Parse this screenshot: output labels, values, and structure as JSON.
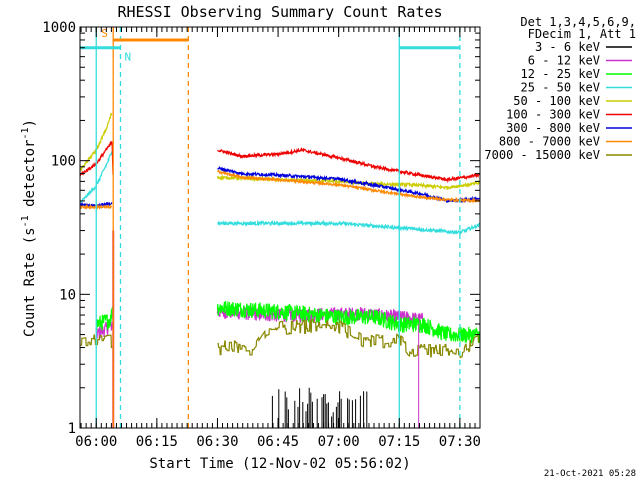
{
  "chart_data": {
    "type": "line",
    "title": "RHESSI Observing Summary Count Rates",
    "xlabel": "Start Time (12-Nov-02 05:56:02)",
    "ylabel_main": "Count Rate (s",
    "ylabel_sup1": "-1",
    "ylabel_mid": " detector",
    "ylabel_sup2": "-1",
    "ylabel_end": ")",
    "yscale": "log",
    "ylim": [
      1,
      1000
    ],
    "xlim_minutes": [
      5.933,
      7.583
    ],
    "x_ticks": [
      {
        "label": "06:00",
        "value": 6.0
      },
      {
        "label": "06:15",
        "value": 6.25
      },
      {
        "label": "06:30",
        "value": 6.5
      },
      {
        "label": "06:45",
        "value": 6.75
      },
      {
        "label": "07:00",
        "value": 7.0
      },
      {
        "label": "07:15",
        "value": 7.25
      },
      {
        "label": "07:30",
        "value": 7.5
      }
    ],
    "y_ticks": [
      {
        "label": "1",
        "value": 1
      },
      {
        "label": "10",
        "value": 10
      },
      {
        "label": "100",
        "value": 100
      },
      {
        "label": "1000",
        "value": 1000
      }
    ],
    "legend_header": [
      "Det 1,3,4,5,6,9,",
      "FDecim 1, Att 1"
    ],
    "legend_placement": "right",
    "series": [
      {
        "name": "3 - 6 keV",
        "color": "#000000",
        "segments": [
          [
            [
              6.72,
              1.2
            ],
            [
              7.12,
              1.2
            ]
          ]
        ],
        "noise": 0.35,
        "spiky": true
      },
      {
        "name": "6 - 12 keV",
        "color": "#cc33cc",
        "segments": [
          [
            [
              6.0,
              5.0
            ],
            [
              6.07,
              6.0
            ]
          ],
          [
            [
              6.5,
              7.5
            ],
            [
              6.75,
              7.0
            ],
            [
              7.1,
              7.2
            ],
            [
              7.35,
              6.5
            ]
          ]
        ],
        "noise": 0.12
      },
      {
        "name": "12 - 25 keV",
        "color": "#00ff00",
        "segments": [
          [
            [
              6.0,
              6.0
            ],
            [
              6.06,
              6.5
            ],
            [
              6.07,
              9.0
            ]
          ],
          [
            [
              6.5,
              8.0
            ],
            [
              6.75,
              7.5
            ],
            [
              7.0,
              6.8
            ],
            [
              7.15,
              6.8
            ],
            [
              7.25,
              6.0
            ],
            [
              7.35,
              6.0
            ],
            [
              7.45,
              5.0
            ],
            [
              7.58,
              5.0
            ]
          ]
        ],
        "noise": 0.14
      },
      {
        "name": "25 - 50 keV",
        "color": "#33dddd",
        "segments": [
          [
            [
              5.933,
              48
            ],
            [
              6.0,
              65
            ],
            [
              6.05,
              100
            ],
            [
              6.065,
              120
            ]
          ],
          [
            [
              6.5,
              34
            ],
            [
              6.75,
              34
            ],
            [
              7.0,
              34
            ],
            [
              7.3,
              31
            ],
            [
              7.5,
              29
            ],
            [
              7.58,
              33
            ]
          ]
        ],
        "noise": 0.03
      },
      {
        "name": "50 - 100 keV",
        "color": "#cccc00",
        "segments": [
          [
            [
              5.933,
              85
            ],
            [
              6.0,
              120
            ],
            [
              6.04,
              170
            ],
            [
              6.065,
              230
            ]
          ],
          [
            [
              6.5,
              75
            ],
            [
              6.75,
              72
            ],
            [
              7.0,
              70
            ],
            [
              7.15,
              67
            ],
            [
              7.3,
              66
            ],
            [
              7.45,
              63
            ],
            [
              7.58,
              68
            ]
          ]
        ],
        "noise": 0.025
      },
      {
        "name": "100 - 300 keV",
        "color": "#ee0000",
        "segments": [
          [
            [
              5.933,
              78
            ],
            [
              6.0,
              95
            ],
            [
              6.04,
              120
            ],
            [
              6.065,
              138
            ],
            [
              6.07,
              70
            ]
          ],
          [
            [
              6.5,
              120
            ],
            [
              6.6,
              108
            ],
            [
              6.75,
              112
            ],
            [
              6.85,
              120
            ],
            [
              7.0,
              105
            ],
            [
              7.15,
              90
            ],
            [
              7.3,
              80
            ],
            [
              7.45,
              72
            ],
            [
              7.58,
              78
            ]
          ]
        ],
        "noise": 0.025
      },
      {
        "name": "300 - 800 keV",
        "color": "#0000dd",
        "segments": [
          [
            [
              5.933,
              47
            ],
            [
              6.0,
              46
            ],
            [
              6.065,
              48
            ]
          ],
          [
            [
              6.5,
              88
            ],
            [
              6.6,
              80
            ],
            [
              6.75,
              78
            ],
            [
              7.0,
              73
            ],
            [
              7.2,
              63
            ],
            [
              7.35,
              56
            ],
            [
              7.45,
              50
            ],
            [
              7.58,
              52
            ]
          ]
        ],
        "noise": 0.025
      },
      {
        "name": "800 - 7000 keV",
        "color": "#ff8800",
        "segments": [
          [
            [
              5.933,
              45
            ],
            [
              6.0,
              45
            ],
            [
              6.065,
              45
            ]
          ],
          [
            [
              6.5,
              83
            ],
            [
              6.6,
              75
            ],
            [
              6.75,
              72
            ],
            [
              7.0,
              66
            ],
            [
              7.2,
              58
            ],
            [
              7.35,
              53
            ],
            [
              7.45,
              51
            ],
            [
              7.58,
              50
            ]
          ]
        ],
        "noise": 0.02
      },
      {
        "name": "7000 - 15000 keV",
        "color": "#888800",
        "segments": [
          [
            [
              5.933,
              4.5
            ],
            [
              6.07,
              4.5
            ]
          ],
          [
            [
              6.5,
              4.0
            ],
            [
              6.65,
              4.0
            ],
            [
              6.7,
              5.5
            ],
            [
              6.9,
              5.8
            ],
            [
              7.0,
              5.8
            ],
            [
              7.1,
              4.5
            ],
            [
              7.25,
              4.5
            ],
            [
              7.3,
              3.8
            ],
            [
              7.5,
              3.8
            ],
            [
              7.58,
              4.5
            ]
          ]
        ],
        "noise": 0.12,
        "steppy": true
      }
    ],
    "annotations": {
      "flags": [
        {
          "label": "S",
          "color": "#ff8800",
          "x_start": 6.07,
          "x_end": 6.38,
          "y_value": 800
        },
        {
          "label": "N",
          "color": "#33dddd",
          "x_start": 5.933,
          "x_end": 6.1,
          "y_value": 700
        },
        {
          "label": "",
          "color": "#33dddd",
          "x_start": 7.25,
          "x_end": 7.5,
          "y_value": 700
        }
      ],
      "vlines": [
        {
          "x": 6.0,
          "color": "#33dddd",
          "dashed": false
        },
        {
          "x": 6.07,
          "color": "#ff8800",
          "dashed": false
        },
        {
          "x": 6.1,
          "color": "#33dddd",
          "dashed": true
        },
        {
          "x": 6.38,
          "color": "#ff8800",
          "dashed": true
        },
        {
          "x": 7.25,
          "color": "#33dddd",
          "dashed": false
        },
        {
          "x": 7.5,
          "color": "#33dddd",
          "dashed": true
        }
      ]
    },
    "footer_date": "21-Oct-2021 05:28"
  }
}
